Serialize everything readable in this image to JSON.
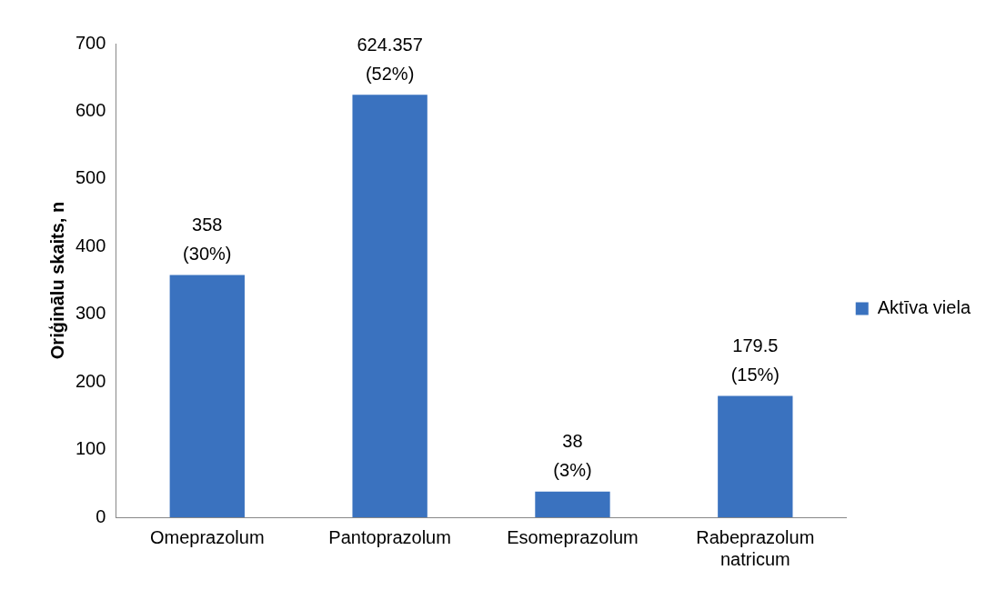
{
  "chart_data": {
    "type": "bar",
    "ylabel": "Oriģinālu skaits, n",
    "categories": [
      "Omeprazolum",
      "Pantoprazolum",
      "Esomeprazolum",
      "Rabeprazolum natricum"
    ],
    "series": [
      {
        "name": "Aktīva viela",
        "color": "#3a72bf",
        "values": [
          358,
          624.357,
          38,
          179.5
        ],
        "value_labels": [
          "358\n(30%)",
          "624.357\n(52%)",
          "38\n(3%)",
          "179.5\n(15%)"
        ]
      }
    ],
    "ylim": [
      0,
      700
    ],
    "yticks": [
      0,
      100,
      200,
      300,
      400,
      500,
      600,
      700
    ],
    "grid": false,
    "legend": "right"
  }
}
